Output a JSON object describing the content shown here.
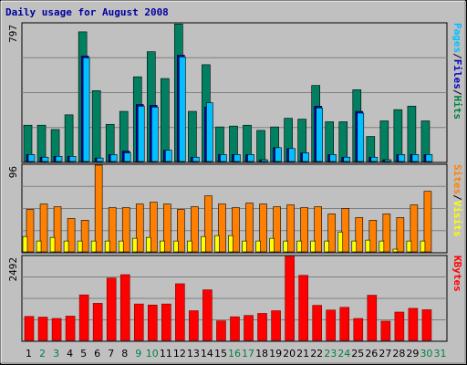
{
  "chart_data": {
    "type": "bar",
    "title": "Daily usage for August 2008",
    "categories": [
      "1",
      "2",
      "3",
      "4",
      "5",
      "6",
      "7",
      "8",
      "9",
      "10",
      "11",
      "12",
      "13",
      "14",
      "15",
      "16",
      "17",
      "18",
      "19",
      "20",
      "21",
      "22",
      "23",
      "24",
      "25",
      "26",
      "27",
      "28",
      "29",
      "30",
      "31"
    ],
    "weekend_days": [
      "2",
      "3",
      "9",
      "10",
      "16",
      "17",
      "23",
      "24",
      "30",
      "31"
    ],
    "panels": [
      {
        "id": "hits-panel",
        "ymax": 797,
        "ymax_label": "797",
        "axis_labels": [
          {
            "text": "Hits",
            "color": "#008040"
          },
          {
            "text": "Files",
            "color": "#0000c0"
          },
          {
            "text": "Pages",
            "color": "#00c0ff"
          }
        ],
        "series": [
          {
            "name": "Hits",
            "color": "#008060",
            "values": [
              210,
              210,
              185,
              270,
              750,
              410,
              215,
              290,
              490,
              635,
              480,
              795,
              290,
              560,
              200,
              205,
              210,
              180,
              200,
              250,
              245,
              440,
              230,
              230,
              415,
              145,
              235,
              300,
              320,
              235,
              0
            ]
          },
          {
            "name": "Files",
            "color": "#0000c0",
            "values": [
              40,
              25,
              30,
              30,
              610,
              20,
              40,
              60,
              330,
              325,
              65,
              615,
              25,
              315,
              40,
              40,
              40,
              10,
              80,
              75,
              50,
              320,
              40,
              25,
              290,
              25,
              10,
              40,
              40,
              40,
              0
            ]
          },
          {
            "name": "Pages",
            "color": "#00c0ff",
            "values": [
              40,
              25,
              30,
              30,
              600,
              20,
              40,
              50,
              320,
              315,
              65,
              605,
              25,
              340,
              40,
              40,
              40,
              10,
              80,
              75,
              50,
              310,
              40,
              25,
              280,
              25,
              10,
              40,
              40,
              40,
              0
            ]
          }
        ]
      },
      {
        "id": "visits-panel",
        "ymax": 96,
        "ymax_label": "96",
        "axis_labels": [
          {
            "text": "Visits",
            "color": "#ffff00"
          },
          {
            "text": "Sites",
            "color": "#ff8000"
          }
        ],
        "series": [
          {
            "name": "Visits",
            "color": "#ffff00",
            "values": [
              17,
              12,
              16,
              12,
              12,
              12,
              12,
              12,
              15,
              16,
              12,
              12,
              12,
              17,
              18,
              18,
              12,
              12,
              15,
              12,
              12,
              12,
              12,
              22,
              12,
              13,
              12,
              3,
              12,
              12,
              0
            ]
          },
          {
            "name": "Sites",
            "color": "#ff8000",
            "values": [
              47,
              53,
              50,
              37,
              35,
              96,
              49,
              49,
              53,
              55,
              53,
              47,
              50,
              62,
              53,
              49,
              54,
              53,
              50,
              52,
              49,
              50,
              42,
              48,
              38,
              35,
              42,
              38,
              52,
              67,
              0
            ]
          }
        ]
      },
      {
        "id": "kbytes-panel",
        "ymax": 2492,
        "ymax_label": "2492",
        "axis_labels": [
          {
            "text": "KBytes",
            "color": "#ff0000"
          }
        ],
        "series": [
          {
            "name": "KBytes",
            "color": "#ff0000",
            "values": [
              710,
              690,
              650,
              720,
              1350,
              1100,
              1850,
              1950,
              1080,
              1050,
              1080,
              1680,
              880,
              1500,
              580,
              700,
              740,
              800,
              880,
              2490,
              1930,
              1040,
              900,
              980,
              650,
              1340,
              570,
              840,
              950,
              910,
              0
            ]
          }
        ]
      }
    ]
  }
}
